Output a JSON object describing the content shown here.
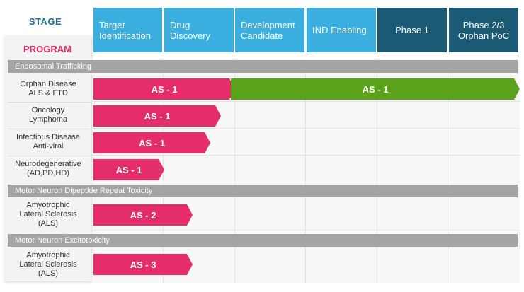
{
  "header": {
    "stage_label": "STAGE",
    "program_label": "PROGRAM"
  },
  "stages": [
    {
      "label": "Target\nIdentification"
    },
    {
      "label": "Drug\nDiscovery"
    },
    {
      "label": "Development\nCandidate"
    },
    {
      "label": "IND Enabling"
    },
    {
      "label": "Phase 1"
    },
    {
      "label": "Phase 2/3\nOrphan PoC"
    }
  ],
  "sections": [
    {
      "title": "Endosomal Trafficking"
    },
    {
      "title": "Motor Neuron Dipeptide Repeat Toxicity"
    },
    {
      "title": "Motor Neuron Excitotoxicity"
    }
  ],
  "programs": [
    {
      "label": "Orphan Disease\nALS & FTD",
      "bars": [
        {
          "text": "AS - 1",
          "stage_reached": 2.0
        },
        {
          "text": "AS - 1",
          "stage_reached": 6.0
        }
      ]
    },
    {
      "label": "Oncology\nLymphoma",
      "bars": [
        {
          "text": "AS - 1",
          "stage_reached": 1.8
        }
      ]
    },
    {
      "label": "Infectious Disease\nAnti-viral",
      "bars": [
        {
          "text": "AS - 1",
          "stage_reached": 1.65
        }
      ]
    },
    {
      "label": "Neurodegenerative\n(AD,PD,HD)",
      "bars": [
        {
          "text": "AS - 1",
          "stage_reached": 1.0
        }
      ]
    },
    {
      "label": "Amyotrophic\nLateral Sclerosis\n(ALS)",
      "bars": [
        {
          "text": "AS - 2",
          "stage_reached": 1.4
        }
      ]
    },
    {
      "label": "Amyotrophic\nLateral Sclerosis\n(ALS)",
      "bars": [
        {
          "text": "AS - 3",
          "stage_reached": 1.4
        }
      ]
    }
  ],
  "colors": {
    "stage_light": "#3aafe0",
    "stage_dark": "#1b5a74",
    "bar_pink": "#e52d6c",
    "bar_green": "#5ba21b",
    "section_gray": "#a4a4a4",
    "program_title": "#e02c68"
  }
}
